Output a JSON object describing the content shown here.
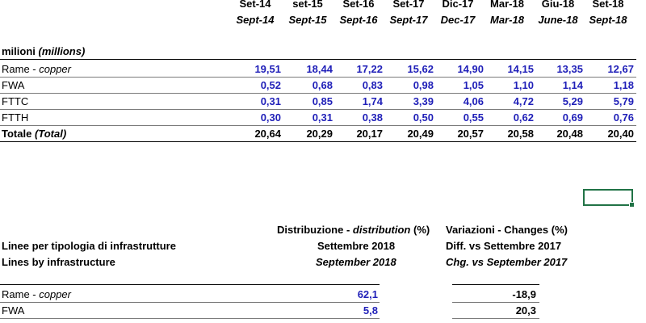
{
  "table1": {
    "periods": [
      {
        "it": "Set-14",
        "en": "Sept-14"
      },
      {
        "it": "set-15",
        "en": "Sept-15"
      },
      {
        "it": "Set-16",
        "en": "Sept-16"
      },
      {
        "it": "Set-17",
        "en": "Sept-17"
      },
      {
        "it": "Dic-17",
        "en": "Dec-17"
      },
      {
        "it": "Mar-18",
        "en": "Mar-18"
      },
      {
        "it": "Giu-18",
        "en": "June-18"
      },
      {
        "it": "Set-18",
        "en": "Sept-18"
      }
    ],
    "unit_it": "milioni",
    "unit_en": "(millions)",
    "rows": [
      {
        "label_it": "Rame - ",
        "label_en": "copper",
        "values": [
          "19,51",
          "18,44",
          "17,22",
          "15,62",
          "14,90",
          "14,15",
          "13,35",
          "12,67"
        ]
      },
      {
        "label_it": "FWA",
        "label_en": "",
        "values": [
          "0,52",
          "0,68",
          "0,83",
          "0,98",
          "1,05",
          "1,10",
          "1,14",
          "1,18"
        ]
      },
      {
        "label_it": "FTTC",
        "label_en": "",
        "values": [
          "0,31",
          "0,85",
          "1,74",
          "3,39",
          "4,06",
          "4,72",
          "5,29",
          "5,79"
        ]
      },
      {
        "label_it": "FTTH",
        "label_en": "",
        "values": [
          "0,30",
          "0,31",
          "0,38",
          "0,50",
          "0,55",
          "0,62",
          "0,69",
          "0,76"
        ]
      }
    ],
    "total": {
      "label_it": "Totale ",
      "label_en": "(Total)",
      "values": [
        "20,64",
        "20,29",
        "20,17",
        "20,49",
        "20,57",
        "20,58",
        "20,48",
        "20,40"
      ]
    }
  },
  "table2": {
    "title_it": "Linee per tipologia di infrastrutture",
    "title_en": "Lines by infrastructure",
    "col1_header_it": "Distribuzione - ",
    "col1_header_en": "distribution",
    "col1_header_unit": " (%)",
    "col1_sub_it": "Settembre 2018",
    "col1_sub_en": "September 2018",
    "col2_header": "Variazioni - Changes (%)",
    "col2_sub_it": "Diff. vs Settembre 2017",
    "col2_sub_en": "Chg. vs September 2017",
    "rows": [
      {
        "label_it": "Rame - ",
        "label_en": "copper",
        "distribution": "62,1",
        "change": "-18,9"
      },
      {
        "label_it": "FWA",
        "label_en": "",
        "distribution": "5,8",
        "change": "20,3"
      }
    ]
  },
  "colors": {
    "blue_values": "#1f1fb8",
    "selection": "#217346"
  }
}
